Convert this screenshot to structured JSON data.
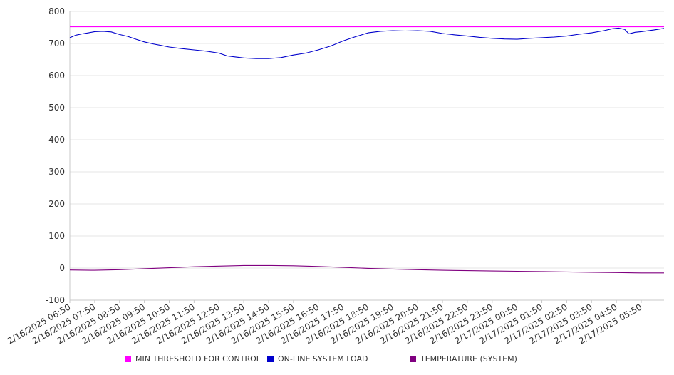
{
  "chart_data": {
    "type": "line",
    "title": "",
    "xlabel": "",
    "ylabel": "",
    "ylim": [
      -100,
      800
    ],
    "yticks": [
      "800",
      "700",
      "600",
      "500",
      "400",
      "300",
      "200",
      "100",
      "0",
      "-100"
    ],
    "xtick_labels": [
      "2/16/2025 06:50",
      "2/16/2025 07:50",
      "2/16/2025 08:50",
      "2/16/2025 09:50",
      "2/16/2025 10:50",
      "2/16/2025 11:50",
      "2/16/2025 12:50",
      "2/16/2025 13:50",
      "2/16/2025 14:50",
      "2/16/2025 15:50",
      "2/16/2025 16:50",
      "2/16/2025 17:50",
      "2/16/2025 18:50",
      "2/16/2025 19:50",
      "2/16/2025 20:50",
      "2/16/2025 21:50",
      "2/16/2025 22:50",
      "2/16/2025 23:50",
      "2/17/2025 00:50",
      "2/17/2025 01:50",
      "2/17/2025 02:50",
      "2/17/2025 03:50",
      "2/17/2025 04:50",
      "2/17/2025 05:50"
    ],
    "x_end": "2/17/2025 06:45",
    "grid": true,
    "legend_position": "bottom",
    "series": [
      {
        "name": "MIN THRESHOLD FOR CONTROL",
        "color": "#ff00ff",
        "points": [
          [
            "2/16/2025 06:50",
            752
          ],
          [
            "2/17/2025 06:45",
            752
          ]
        ]
      },
      {
        "name": "ON-LINE SYSTEM LOAD",
        "color": "#0000cc",
        "points": [
          [
            "2/16/2025 06:50",
            718
          ],
          [
            "2/16/2025 07:05",
            726
          ],
          [
            "2/16/2025 07:20",
            730
          ],
          [
            "2/16/2025 07:35",
            733
          ],
          [
            "2/16/2025 07:50",
            737
          ],
          [
            "2/16/2025 08:10",
            738
          ],
          [
            "2/16/2025 08:30",
            736
          ],
          [
            "2/16/2025 08:50",
            728
          ],
          [
            "2/16/2025 09:10",
            722
          ],
          [
            "2/16/2025 09:30",
            713
          ],
          [
            "2/16/2025 09:50",
            705
          ],
          [
            "2/16/2025 10:10",
            699
          ],
          [
            "2/16/2025 10:30",
            694
          ],
          [
            "2/16/2025 10:50",
            689
          ],
          [
            "2/16/2025 11:20",
            684
          ],
          [
            "2/16/2025 11:50",
            680
          ],
          [
            "2/16/2025 12:20",
            676
          ],
          [
            "2/16/2025 12:50",
            670
          ],
          [
            "2/16/2025 13:10",
            661
          ],
          [
            "2/16/2025 13:30",
            658
          ],
          [
            "2/16/2025 13:50",
            655
          ],
          [
            "2/16/2025 14:20",
            653
          ],
          [
            "2/16/2025 14:50",
            653
          ],
          [
            "2/16/2025 15:20",
            656
          ],
          [
            "2/16/2025 15:50",
            664
          ],
          [
            "2/16/2025 16:20",
            670
          ],
          [
            "2/16/2025 16:50",
            680
          ],
          [
            "2/16/2025 17:20",
            692
          ],
          [
            "2/16/2025 17:50",
            708
          ],
          [
            "2/16/2025 18:20",
            721
          ],
          [
            "2/16/2025 18:50",
            733
          ],
          [
            "2/16/2025 19:20",
            738
          ],
          [
            "2/16/2025 19:50",
            740
          ],
          [
            "2/16/2025 20:20",
            739
          ],
          [
            "2/16/2025 20:50",
            740
          ],
          [
            "2/16/2025 21:20",
            738
          ],
          [
            "2/16/2025 21:50",
            731
          ],
          [
            "2/16/2025 22:20",
            727
          ],
          [
            "2/16/2025 22:50",
            723
          ],
          [
            "2/16/2025 23:20",
            719
          ],
          [
            "2/16/2025 23:50",
            716
          ],
          [
            "2/17/2025 00:20",
            714
          ],
          [
            "2/17/2025 00:50",
            713
          ],
          [
            "2/17/2025 01:20",
            716
          ],
          [
            "2/17/2025 01:50",
            718
          ],
          [
            "2/17/2025 02:20",
            720
          ],
          [
            "2/17/2025 02:50",
            723
          ],
          [
            "2/17/2025 03:20",
            729
          ],
          [
            "2/17/2025 03:50",
            733
          ],
          [
            "2/17/2025 04:20",
            740
          ],
          [
            "2/17/2025 04:40",
            746
          ],
          [
            "2/17/2025 04:55",
            748
          ],
          [
            "2/17/2025 05:10",
            744
          ],
          [
            "2/17/2025 05:20",
            730
          ],
          [
            "2/17/2025 05:35",
            735
          ],
          [
            "2/17/2025 05:50",
            737
          ],
          [
            "2/17/2025 06:20",
            742
          ],
          [
            "2/17/2025 06:45",
            747
          ]
        ]
      },
      {
        "name": "TEMPERATURE (SYSTEM)",
        "color": "#800080",
        "points": [
          [
            "2/16/2025 06:50",
            -6
          ],
          [
            "2/16/2025 07:50",
            -7
          ],
          [
            "2/16/2025 08:50",
            -5
          ],
          [
            "2/16/2025 09:50",
            -2
          ],
          [
            "2/16/2025 10:50",
            1
          ],
          [
            "2/16/2025 11:50",
            4
          ],
          [
            "2/16/2025 12:50",
            6
          ],
          [
            "2/16/2025 13:50",
            8
          ],
          [
            "2/16/2025 14:50",
            8
          ],
          [
            "2/16/2025 15:50",
            7
          ],
          [
            "2/16/2025 16:50",
            5
          ],
          [
            "2/16/2025 17:50",
            2
          ],
          [
            "2/16/2025 18:50",
            -1
          ],
          [
            "2/16/2025 19:50",
            -3
          ],
          [
            "2/16/2025 20:50",
            -5
          ],
          [
            "2/16/2025 21:50",
            -7
          ],
          [
            "2/16/2025 22:50",
            -8
          ],
          [
            "2/16/2025 23:50",
            -9
          ],
          [
            "2/17/2025 00:50",
            -10
          ],
          [
            "2/17/2025 01:50",
            -11
          ],
          [
            "2/17/2025 02:50",
            -12
          ],
          [
            "2/17/2025 03:50",
            -13
          ],
          [
            "2/17/2025 04:50",
            -14
          ],
          [
            "2/17/2025 05:50",
            -15
          ],
          [
            "2/17/2025 06:45",
            -15
          ]
        ]
      }
    ]
  }
}
